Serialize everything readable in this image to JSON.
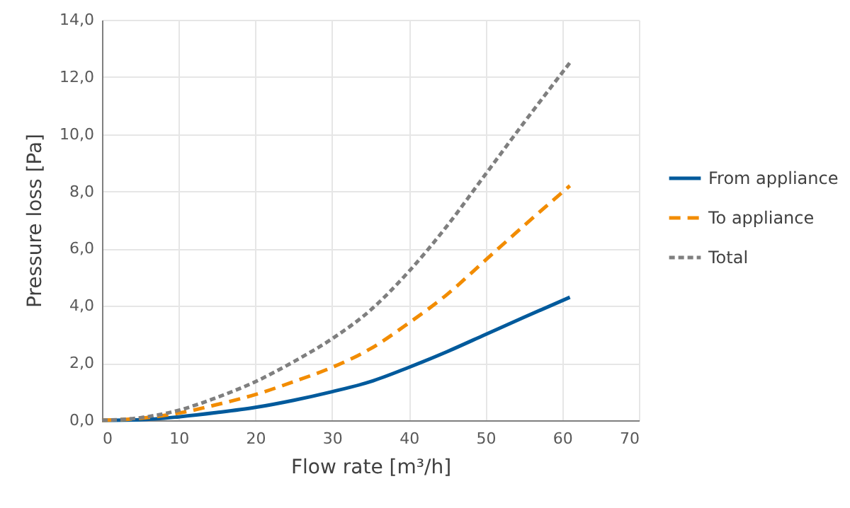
{
  "chart_data": {
    "type": "line",
    "xlabel": "Flow rate [m³/h]",
    "ylabel": "Pressure loss [Pa]",
    "x": [
      0,
      5,
      10,
      15,
      20,
      25,
      30,
      35,
      40,
      45,
      50,
      55,
      61
    ],
    "xlim": [
      0,
      70
    ],
    "xticks": [
      0,
      10,
      20,
      30,
      40,
      50,
      60,
      70
    ],
    "ylim": [
      0,
      14
    ],
    "yticks": [
      {
        "value": 0,
        "label": "0,0"
      },
      {
        "value": 2,
        "label": "2,0"
      },
      {
        "value": 4,
        "label": "4,0"
      },
      {
        "value": 6,
        "label": "6,0"
      },
      {
        "value": 8,
        "label": "8,0"
      },
      {
        "value": 10,
        "label": "10,0"
      },
      {
        "value": 12,
        "label": "12,0"
      },
      {
        "value": 14,
        "label": "14,0"
      }
    ],
    "grid": true,
    "legend": "right",
    "marker": "none",
    "series": [
      {
        "name": "From appliance",
        "color": "#005a9c",
        "line_style": "solid",
        "values": [
          0,
          0.02,
          0.12,
          0.27,
          0.45,
          0.7,
          1.0,
          1.35,
          1.85,
          2.4,
          3.0,
          3.6,
          4.3
        ]
      },
      {
        "name": "To appliance",
        "color": "#f28c00",
        "line_style": "dashed",
        "values": [
          0,
          0.07,
          0.25,
          0.55,
          0.9,
          1.35,
          1.85,
          2.5,
          3.4,
          4.4,
          5.6,
          6.8,
          8.2
        ]
      },
      {
        "name": "Total",
        "color": "#7f7f7f",
        "line_style": "dotted",
        "values": [
          0,
          0.09,
          0.35,
          0.8,
          1.35,
          2.05,
          2.85,
          3.85,
          5.2,
          6.8,
          8.6,
          10.4,
          12.5
        ]
      }
    ]
  }
}
